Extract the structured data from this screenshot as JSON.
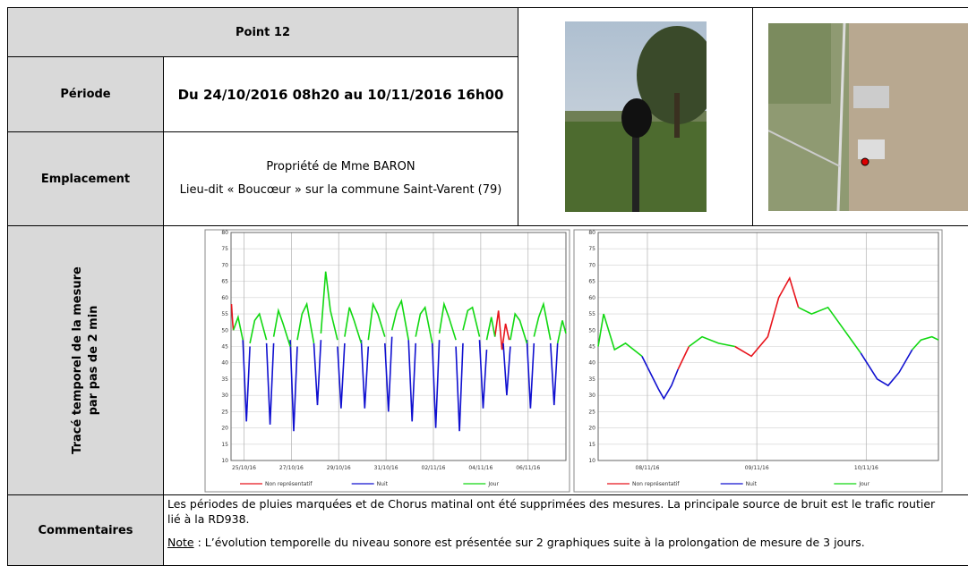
{
  "table": {
    "title": "Point 12",
    "periode": {
      "label": "Période",
      "value": "Du 24/10/2016 08h20 au 10/11/2016 16h00"
    },
    "emplacement": {
      "label": "Emplacement",
      "lines": [
        "Propriété de Mme BARON",
        "Lieu-dit « Boucœur » sur la commune Saint-Varent (79)"
      ]
    },
    "trace": {
      "label_lines": [
        "Tracé temporel de la mesure",
        "par pas de 2 min"
      ]
    },
    "commentaires": {
      "label": "Commentaires",
      "lines": [
        "Les périodes de pluies marquées et de Chorus matinal ont été supprimées des mesures. La principale source de bruit est le trafic routier",
        "lié à la RD938."
      ],
      "note_label": "Note",
      "note_text": " : L’évolution temporelle du niveau sonore est présentée sur 2 graphiques suite à la prolongation de mesure de 3 jours."
    }
  },
  "chart_data": [
    {
      "type": "line",
      "grid": true,
      "xlim": [
        0.45,
        14.6
      ],
      "ylim": [
        10,
        80
      ],
      "xticks": [
        {
          "value": 1,
          "label": "25/10/16"
        },
        {
          "value": 3,
          "label": "27/10/16"
        },
        {
          "value": 5,
          "label": "29/10/16"
        },
        {
          "value": 7,
          "label": "31/10/16"
        },
        {
          "value": 9,
          "label": "02/11/16"
        },
        {
          "value": 11,
          "label": "04/11/16"
        },
        {
          "value": 13,
          "label": "06/11/16"
        }
      ],
      "yticks": [
        10,
        15,
        20,
        25,
        30,
        35,
        40,
        45,
        50,
        55,
        60,
        65,
        70,
        75,
        80
      ],
      "series": [
        {
          "name": "Non représentatif",
          "color": "#e8141c",
          "x": [
            0.47,
            0.52,
            0.55,
            null,
            11.6,
            11.75,
            11.9,
            12.05,
            12.2
          ],
          "values": [
            58,
            52,
            50,
            null,
            48,
            56,
            44,
            52,
            47
          ]
        },
        {
          "name": "Nuit",
          "color": "#1010d0",
          "x": [
            0.95,
            1.1,
            1.25,
            null,
            1.95,
            2.1,
            2.25,
            null,
            2.95,
            3.1,
            3.25,
            null,
            3.95,
            4.1,
            4.25,
            null,
            4.95,
            5.1,
            5.25,
            null,
            5.95,
            6.1,
            6.25,
            null,
            6.95,
            7.1,
            7.25,
            null,
            7.95,
            8.1,
            8.25,
            null,
            8.95,
            9.1,
            9.25,
            null,
            9.95,
            10.1,
            10.25,
            null,
            10.95,
            11.1,
            11.25,
            null,
            11.95,
            12.1,
            12.25,
            null,
            12.95,
            13.1,
            13.25,
            null,
            13.95,
            14.1,
            14.25
          ],
          "values": [
            47,
            22,
            45,
            null,
            46,
            21,
            46,
            null,
            47,
            19,
            45,
            null,
            46,
            27,
            47,
            null,
            45,
            26,
            46,
            null,
            47,
            26,
            45,
            null,
            46,
            25,
            48,
            null,
            47,
            22,
            46,
            null,
            46,
            20,
            47,
            null,
            45,
            19,
            46,
            null,
            47,
            26,
            44,
            null,
            46,
            30,
            45,
            null,
            47,
            26,
            46,
            null,
            46,
            27,
            46
          ]
        },
        {
          "name": "Jour",
          "color": "#12d812",
          "x": [
            0.55,
            0.75,
            0.95,
            null,
            1.25,
            1.45,
            1.65,
            1.95,
            null,
            2.25,
            2.45,
            2.65,
            2.95,
            null,
            3.25,
            3.45,
            3.65,
            3.95,
            null,
            4.25,
            4.45,
            4.65,
            4.95,
            null,
            5.25,
            5.45,
            5.65,
            5.95,
            null,
            6.25,
            6.45,
            6.65,
            6.95,
            null,
            7.25,
            7.45,
            7.65,
            7.95,
            null,
            8.25,
            8.45,
            8.65,
            8.95,
            null,
            9.25,
            9.45,
            9.65,
            9.95,
            null,
            10.25,
            10.45,
            10.65,
            10.95,
            null,
            11.25,
            11.45,
            11.6,
            null,
            12.25,
            12.45,
            12.65,
            12.95,
            null,
            13.25,
            13.45,
            13.65,
            13.95,
            null,
            14.25,
            14.45,
            14.6
          ],
          "values": [
            50,
            54,
            47,
            null,
            46,
            53,
            55,
            47,
            null,
            48,
            56,
            52,
            45,
            null,
            47,
            55,
            58,
            46,
            null,
            49,
            68,
            56,
            47,
            null,
            48,
            57,
            53,
            46,
            null,
            47,
            58,
            55,
            48,
            null,
            50,
            56,
            59,
            47,
            null,
            48,
            55,
            57,
            46,
            null,
            49,
            58,
            54,
            47,
            null,
            50,
            56,
            57,
            48,
            null,
            47,
            54,
            48,
            null,
            47,
            55,
            53,
            46,
            null,
            48,
            54,
            58,
            47,
            null,
            46,
            53,
            49
          ]
        }
      ]
    },
    {
      "type": "line",
      "grid": true,
      "xlim": [
        14.55,
        17.66
      ],
      "ylim": [
        10,
        80
      ],
      "xticks": [
        {
          "value": 15,
          "label": "08/11/16"
        },
        {
          "value": 16,
          "label": "09/11/16"
        },
        {
          "value": 17,
          "label": "10/11/16"
        }
      ],
      "yticks": [
        10,
        15,
        20,
        25,
        30,
        35,
        40,
        45,
        50,
        55,
        60,
        65,
        70,
        75,
        80
      ],
      "series": [
        {
          "name": "Non représentatif",
          "color": "#e8141c",
          "x": [
            15.28,
            15.38,
            null,
            15.8,
            15.95,
            16.1,
            16.2,
            16.3,
            16.38
          ],
          "values": [
            38,
            45,
            null,
            45,
            42,
            48,
            60,
            66,
            57
          ]
        },
        {
          "name": "Nuit",
          "color": "#1010d0",
          "x": [
            14.95,
            15.1,
            15.15,
            15.22,
            15.28,
            null,
            16.95,
            17.1,
            17.2,
            17.3,
            17.42
          ],
          "values": [
            42,
            32,
            29,
            33,
            38,
            null,
            43,
            35,
            33,
            37,
            44
          ]
        },
        {
          "name": "Jour",
          "color": "#12d812",
          "x": [
            14.55,
            14.6,
            14.7,
            14.8,
            14.95,
            null,
            15.38,
            15.5,
            15.65,
            15.8,
            null,
            16.38,
            16.5,
            16.65,
            16.8,
            16.95,
            null,
            17.42,
            17.5,
            17.6,
            17.66
          ],
          "values": [
            45,
            55,
            44,
            46,
            42,
            null,
            45,
            48,
            46,
            45,
            null,
            57,
            55,
            57,
            50,
            43,
            null,
            44,
            47,
            48,
            47
          ]
        }
      ]
    }
  ]
}
